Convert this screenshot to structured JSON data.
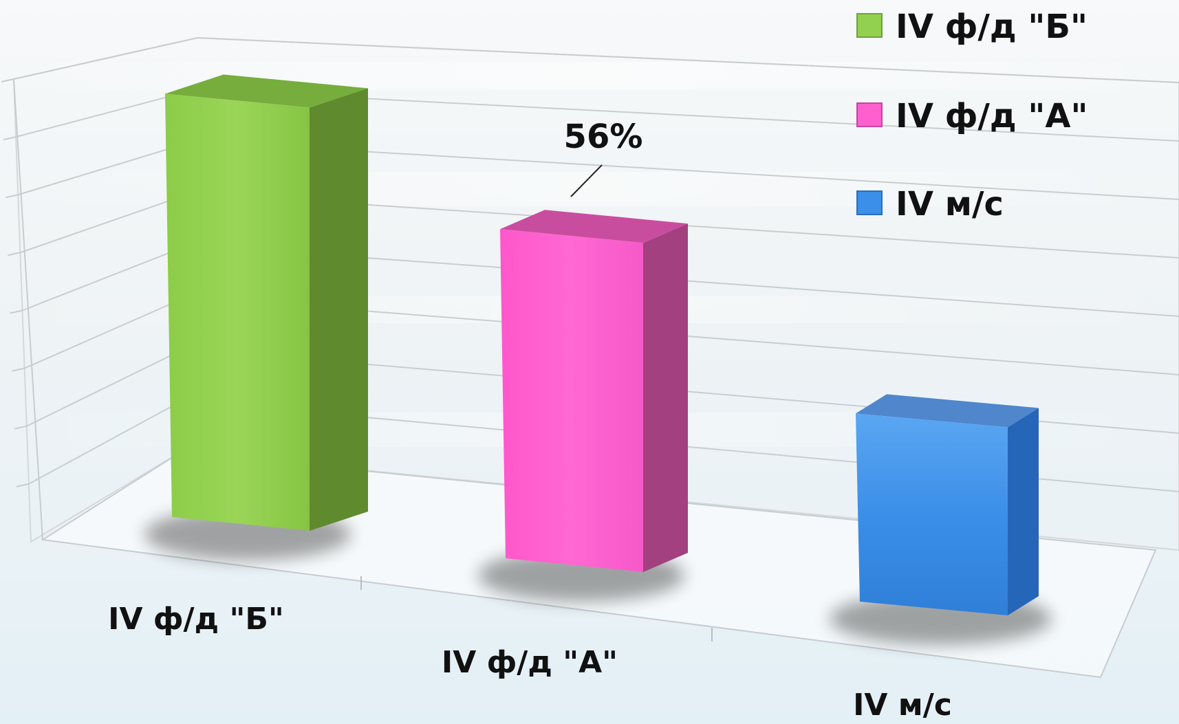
{
  "chart_data": {
    "type": "bar",
    "title": "",
    "xlabel": "",
    "ylabel": "",
    "categories": [
      "IV ф/д \"Б\"",
      "IV ф/д \"А\"",
      "IV м/с"
    ],
    "values": [
      72,
      56,
      32
    ],
    "data_labels": [
      "",
      "56%",
      ""
    ],
    "ylim": [
      0,
      85
    ],
    "grid": true,
    "legend": "top-right",
    "legend_entries": [
      "IV ф/д \"Б\"",
      "IV ф/д \"А\"",
      "IV м/с"
    ],
    "colors": [
      "#92d050",
      "#ff5fcf",
      "#3b8fe8"
    ],
    "side_colors": [
      "#5f8a2e",
      "#a3407f",
      "#2566b8"
    ],
    "top_colors": [
      "#76ad3c",
      "#c94d9f",
      "#4f86cc"
    ]
  }
}
